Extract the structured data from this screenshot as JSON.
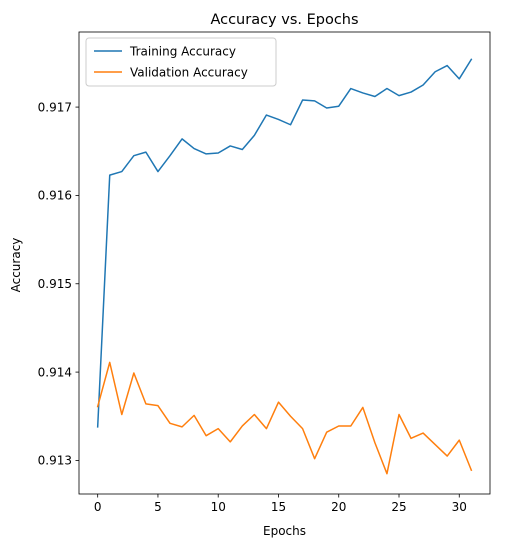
{
  "chart_data": {
    "type": "line",
    "title": "Accuracy vs. Epochs",
    "xlabel": "Epochs",
    "ylabel": "Accuracy",
    "xlim": [
      -1.55,
      32.55
    ],
    "ylim": [
      0.91262,
      0.91785
    ],
    "xticks": [
      0,
      5,
      10,
      15,
      20,
      25,
      30
    ],
    "yticks": [
      0.913,
      0.914,
      0.915,
      0.916,
      0.917
    ],
    "ytick_labels": [
      "0.913",
      "0.914",
      "0.915",
      "0.916",
      "0.917"
    ],
    "grid": false,
    "legend_position": "upper-left",
    "x": [
      0,
      1,
      2,
      3,
      4,
      5,
      6,
      7,
      8,
      9,
      10,
      11,
      12,
      13,
      14,
      15,
      16,
      17,
      18,
      19,
      20,
      21,
      22,
      23,
      24,
      25,
      26,
      27,
      28,
      29,
      30,
      31
    ],
    "series": [
      {
        "name": "Training Accuracy",
        "color": "#1f77b4",
        "values": [
          0.91338,
          0.91623,
          0.91627,
          0.91645,
          0.91649,
          0.91627,
          0.91645,
          0.91664,
          0.91653,
          0.91647,
          0.91648,
          0.91656,
          0.91652,
          0.91668,
          0.91691,
          0.91686,
          0.9168,
          0.91708,
          0.91707,
          0.91699,
          0.91701,
          0.91721,
          0.91716,
          0.91712,
          0.91721,
          0.91713,
          0.91717,
          0.91725,
          0.9174,
          0.91747,
          0.91732,
          0.91754
        ]
      },
      {
        "name": "Validation Accuracy",
        "color": "#ff7f0e",
        "values": [
          0.91361,
          0.91411,
          0.91352,
          0.91399,
          0.91364,
          0.91362,
          0.91342,
          0.91338,
          0.91351,
          0.91328,
          0.91336,
          0.91321,
          0.91339,
          0.91352,
          0.91336,
          0.91366,
          0.9135,
          0.91336,
          0.91302,
          0.91332,
          0.91339,
          0.91339,
          0.9136,
          0.9132,
          0.91285,
          0.91352,
          0.91325,
          0.91331,
          0.91318,
          0.91305,
          0.91323,
          0.91289
        ]
      }
    ]
  }
}
